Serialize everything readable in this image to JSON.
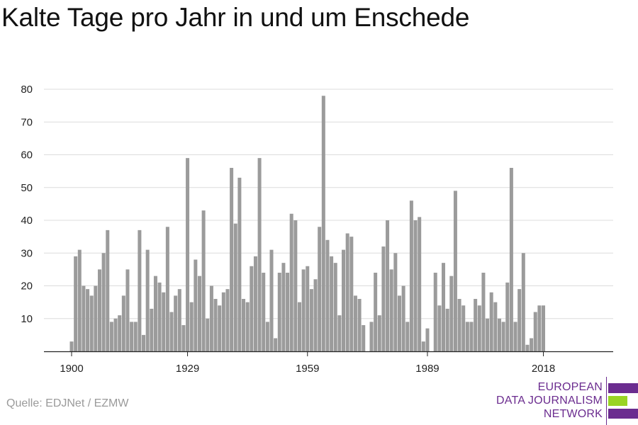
{
  "chart_data": {
    "type": "bar",
    "title": "Kalte Tage pro Jahr in und um Enschede",
    "xlabel": "",
    "ylabel": "",
    "x_start": 1900,
    "x_ticks": [
      1900,
      1929,
      1959,
      1989,
      2018
    ],
    "ylim": [
      0,
      80
    ],
    "y_ticks": [
      10,
      20,
      30,
      40,
      50,
      60,
      70,
      80
    ],
    "grid": true,
    "bar_color": "#9b9b9b",
    "values": [
      3,
      29,
      31,
      20,
      19,
      17,
      20,
      25,
      30,
      37,
      9,
      10,
      11,
      17,
      25,
      9,
      9,
      37,
      5,
      31,
      13,
      23,
      21,
      18,
      38,
      12,
      17,
      19,
      8,
      59,
      15,
      28,
      23,
      43,
      10,
      20,
      16,
      14,
      18,
      19,
      56,
      39,
      53,
      16,
      15,
      26,
      29,
      59,
      24,
      9,
      31,
      4,
      24,
      27,
      24,
      42,
      40,
      15,
      25,
      26,
      19,
      22,
      38,
      78,
      34,
      29,
      27,
      11,
      31,
      36,
      35,
      17,
      16,
      8,
      0,
      9,
      24,
      11,
      32,
      40,
      25,
      30,
      17,
      20,
      9,
      46,
      40,
      41,
      3,
      7,
      0,
      24,
      14,
      27,
      13,
      23,
      49,
      16,
      14,
      9,
      9,
      16,
      14,
      24,
      10,
      18,
      15,
      10,
      9,
      21,
      56,
      9,
      19,
      30,
      2,
      4,
      12,
      14,
      14
    ]
  },
  "source": "Quelle: EDJNet / EZMW",
  "logo": {
    "lines": [
      "EUROPEAN",
      "DATA JOURNALISM",
      "NETWORK"
    ],
    "color_purple": "#6b2c8f",
    "color_green": "#99d424"
  }
}
